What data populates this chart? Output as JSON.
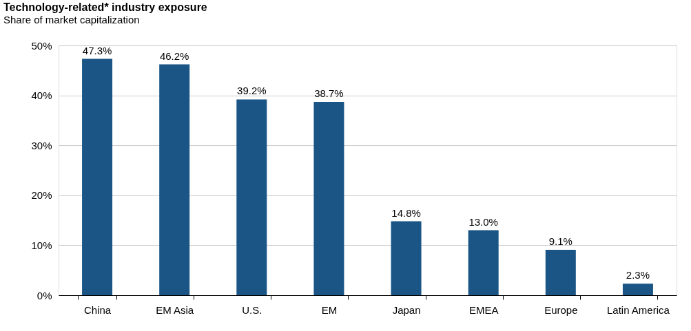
{
  "chart_data": {
    "type": "bar",
    "title": "Technology-related* industry exposure",
    "subtitle": "Share of market capitalization",
    "categories": [
      "China",
      "EM Asia",
      "U.S.",
      "EM",
      "Japan",
      "EMEA",
      "Europe",
      "Latin America"
    ],
    "values": [
      47.3,
      46.2,
      39.2,
      38.7,
      14.8,
      13.0,
      9.1,
      2.3
    ],
    "value_labels": [
      "47.3%",
      "46.2%",
      "39.2%",
      "38.7%",
      "14.8%",
      "13.0%",
      "9.1%",
      "2.3%"
    ],
    "color": "#1a5585",
    "ylim": [
      0,
      50
    ],
    "yticks": [
      {
        "value": 0,
        "label": "0%"
      },
      {
        "value": 10,
        "label": "10%"
      },
      {
        "value": 20,
        "label": "20%"
      },
      {
        "value": 30,
        "label": "30%"
      },
      {
        "value": 40,
        "label": "40%"
      },
      {
        "value": 50,
        "label": "50%"
      }
    ],
    "grid": "y"
  }
}
